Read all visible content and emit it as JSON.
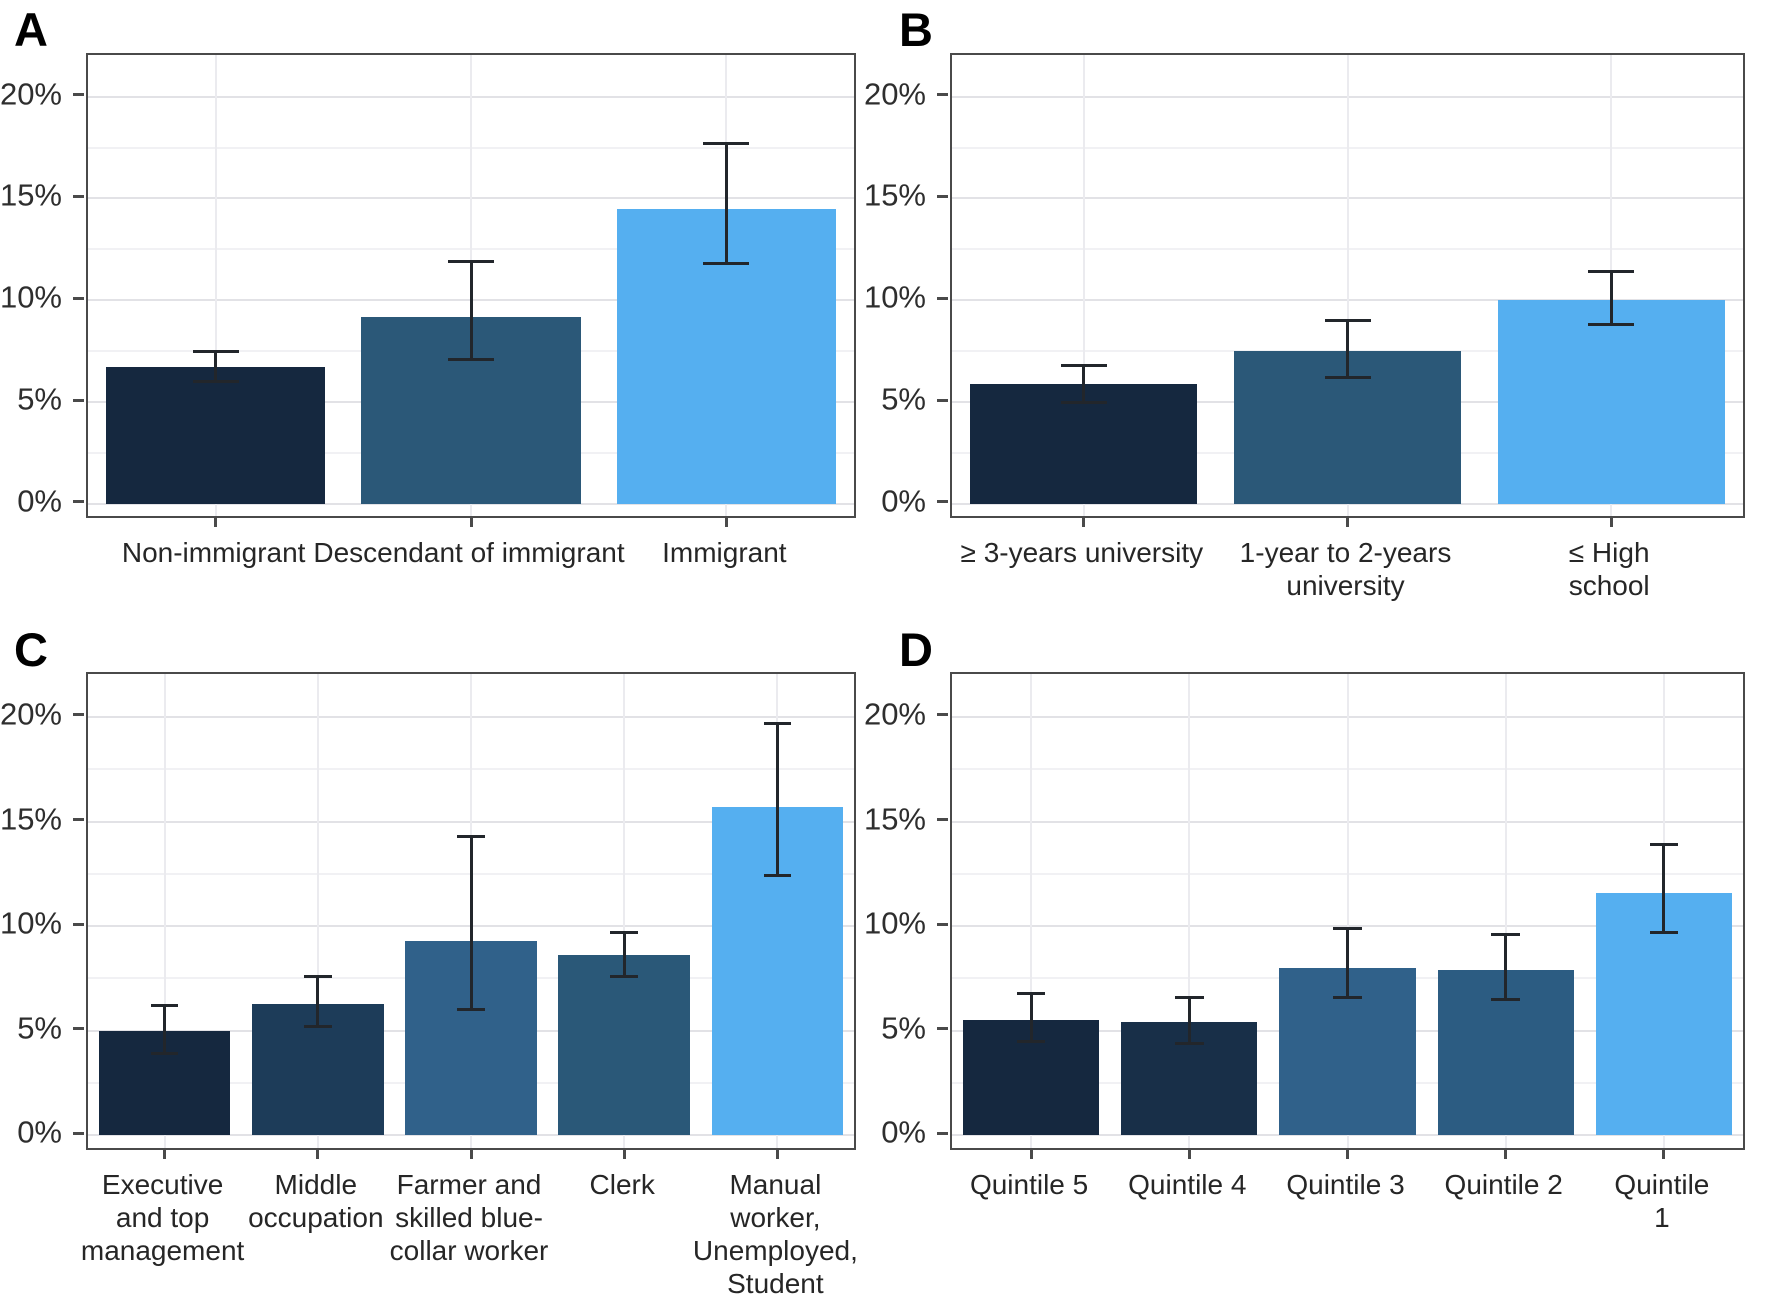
{
  "figure": {
    "background": "#ffffff",
    "error_bar_color": "#22262b",
    "axis_border_color": "#4a4a4a"
  },
  "chart_data": [
    {
      "type": "bar",
      "panel_label": "A",
      "categories": [
        "Non-immigrant",
        "Descendant of immigrant",
        "Immigrant"
      ],
      "values": [
        6.7,
        9.2,
        14.5
      ],
      "error_low": [
        6.0,
        7.1,
        11.8
      ],
      "error_high": [
        7.5,
        11.9,
        17.7
      ],
      "bar_colors": [
        "#15283f",
        "#2b5878",
        "#55aff0"
      ],
      "ylim": [
        -0.6,
        22.05
      ],
      "yticks": [
        0,
        5,
        10,
        15,
        20
      ],
      "ytick_labels": [
        "0%",
        "5%",
        "10%",
        "15%",
        "20%"
      ],
      "minor_gridlines": [
        2.5,
        7.5,
        12.5,
        17.5
      ],
      "grid": "on",
      "legend": "none",
      "xlabel": "",
      "ylabel": ""
    },
    {
      "type": "bar",
      "panel_label": "B",
      "categories": [
        "≥ 3-years university",
        "1-year to 2-years\nuniversity",
        "≤ High school"
      ],
      "values": [
        5.9,
        7.5,
        10.0
      ],
      "error_low": [
        5.0,
        6.2,
        8.8
      ],
      "error_high": [
        6.8,
        9.0,
        11.4
      ],
      "bar_colors": [
        "#15283f",
        "#2b5878",
        "#55aff0"
      ],
      "ylim": [
        -0.6,
        22.05
      ],
      "yticks": [
        0,
        5,
        10,
        15,
        20
      ],
      "ytick_labels": [
        "0%",
        "5%",
        "10%",
        "15%",
        "20%"
      ],
      "minor_gridlines": [
        2.5,
        7.5,
        12.5,
        17.5
      ],
      "grid": "on",
      "legend": "none",
      "xlabel": "",
      "ylabel": ""
    },
    {
      "type": "bar",
      "panel_label": "C",
      "categories": [
        "Executive\nand top\nmanagement",
        "Middle\noccupation",
        "Farmer and\nskilled blue-\ncollar worker",
        "Clerk",
        "Manual worker,\nUnemployed,\nStudent"
      ],
      "values": [
        5.0,
        6.3,
        9.3,
        8.6,
        15.7
      ],
      "error_low": [
        3.9,
        5.2,
        6.0,
        7.6,
        12.4
      ],
      "error_high": [
        6.2,
        7.6,
        14.3,
        9.7,
        19.7
      ],
      "bar_colors": [
        "#15283f",
        "#1d3c59",
        "#30618a",
        "#2a5878",
        "#55aff0"
      ],
      "ylim": [
        -0.6,
        22.05
      ],
      "yticks": [
        0,
        5,
        10,
        15,
        20
      ],
      "ytick_labels": [
        "0%",
        "5%",
        "10%",
        "15%",
        "20%"
      ],
      "minor_gridlines": [
        2.5,
        7.5,
        12.5,
        17.5
      ],
      "grid": "on",
      "legend": "none",
      "xlabel": "",
      "ylabel": ""
    },
    {
      "type": "bar",
      "panel_label": "D",
      "categories": [
        "Quintile 5",
        "Quintile 4",
        "Quintile 3",
        "Quintile 2",
        "Quintile 1"
      ],
      "values": [
        5.5,
        5.4,
        8.0,
        7.9,
        11.6
      ],
      "error_low": [
        4.5,
        4.4,
        6.6,
        6.5,
        9.7
      ],
      "error_high": [
        6.8,
        6.6,
        9.9,
        9.6,
        13.9
      ],
      "bar_colors": [
        "#15283f",
        "#182f48",
        "#30618a",
        "#2c5c82",
        "#55aff0"
      ],
      "ylim": [
        -0.6,
        22.05
      ],
      "yticks": [
        0,
        5,
        10,
        15,
        20
      ],
      "ytick_labels": [
        "0%",
        "5%",
        "10%",
        "15%",
        "20%"
      ],
      "minor_gridlines": [
        2.5,
        7.5,
        12.5,
        17.5
      ],
      "grid": "on",
      "legend": "none",
      "xlabel": "",
      "ylabel": ""
    }
  ]
}
